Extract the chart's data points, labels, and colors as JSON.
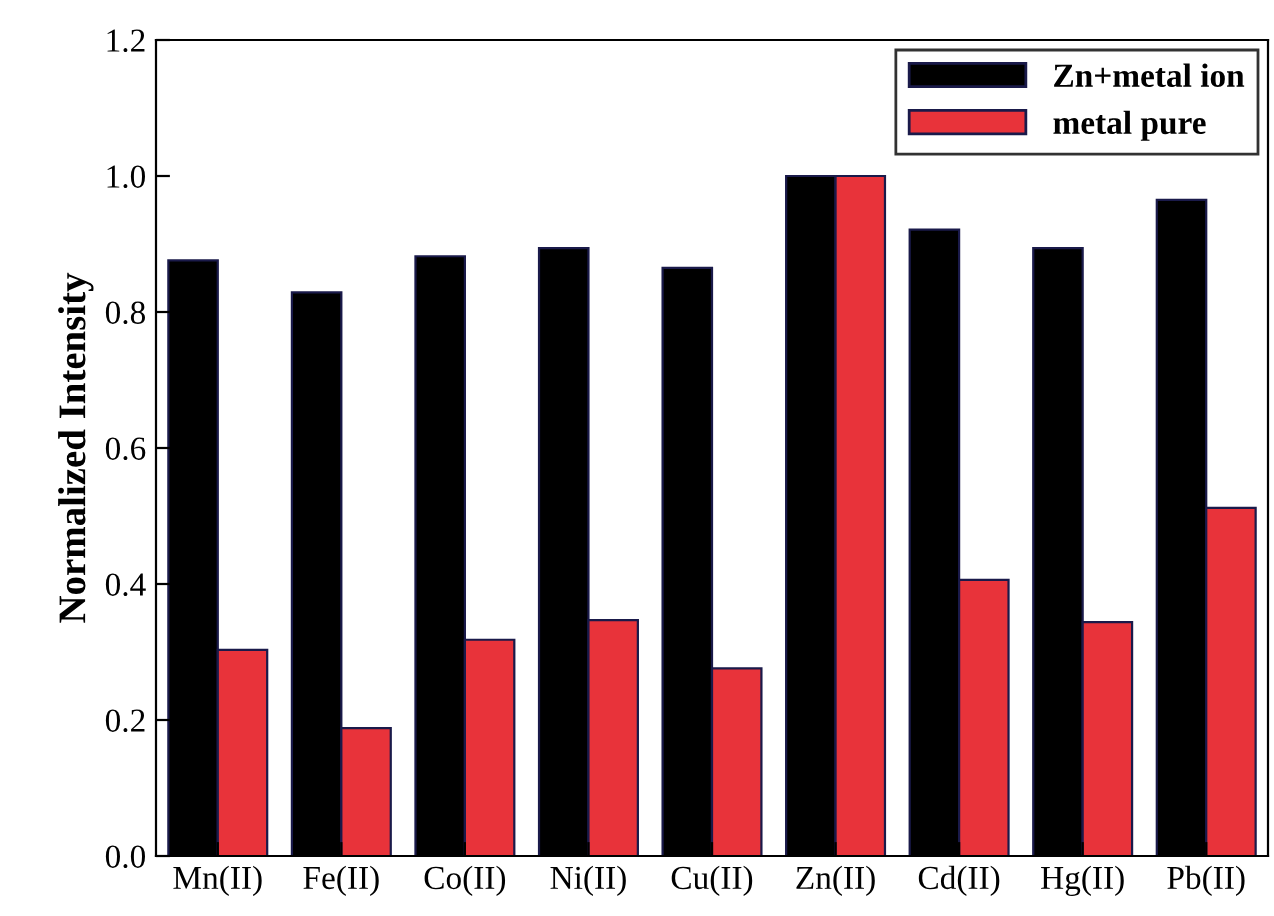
{
  "chart_data": {
    "type": "bar",
    "ylabel": "Normalized Intensity",
    "categories": [
      "Mn(II)",
      "Fe(II)",
      "Co(II)",
      "Ni(II)",
      "Cu(II)",
      "Zn(II)",
      "Cd(II)",
      "Hg(II)",
      "Pb(II)"
    ],
    "series": [
      {
        "name": "Zn+metal ion",
        "color": "#000000",
        "values": [
          0.876,
          0.829,
          0.882,
          0.894,
          0.865,
          1.0,
          0.921,
          0.894,
          0.965
        ]
      },
      {
        "name": "metal pure",
        "color": "#e8333a",
        "values": [
          0.303,
          0.188,
          0.318,
          0.347,
          0.276,
          1.0,
          0.406,
          0.344,
          0.512
        ]
      }
    ],
    "ylim": [
      0,
      1.2
    ],
    "yticks": [
      {
        "value": 0,
        "label": "0.0"
      },
      0.2,
      0.4,
      0.6,
      0.8,
      {
        "value": 1,
        "label": "1.0"
      },
      {
        "value": 1.2,
        "label": "1.2"
      }
    ],
    "legend": "top right",
    "grid": false
  }
}
